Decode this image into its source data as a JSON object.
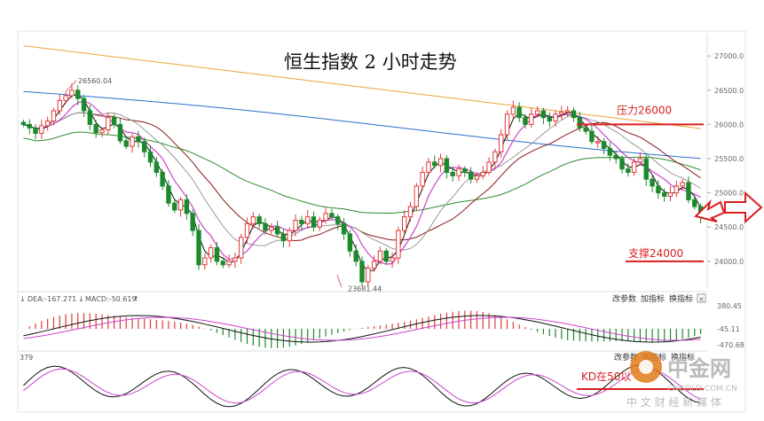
{
  "chart_data": {
    "type": "candlestick",
    "title": "恒生指数 2 小时走势",
    "ylim": [
      23700,
      27300
    ],
    "y_ticks": [
      "27000.0",
      "26500.0",
      "26000.0",
      "25500.0",
      "25000.0",
      "24500.0",
      "24000.0"
    ],
    "y_tick_values": [
      27000,
      26500,
      26000,
      25500,
      25000,
      24500,
      24000
    ],
    "annotations": {
      "high_label": "26560.04",
      "low_label": "23681.44",
      "resistance_label": "压力26000",
      "resistance_value": 26000,
      "support_label": "支撑24000",
      "support_value": 24000,
      "kd_note": "KD在50以"
    },
    "candles_close": [
      26000,
      25950,
      25870,
      25980,
      26050,
      26200,
      26350,
      26420,
      26500,
      26380,
      26200,
      26000,
      25880,
      25920,
      26100,
      26000,
      25760,
      25680,
      25820,
      25750,
      25600,
      25450,
      25300,
      25100,
      24850,
      24750,
      24900,
      24700,
      24450,
      23950,
      24050,
      24200,
      24000,
      23950,
      24000,
      24050,
      24350,
      24550,
      24650,
      24550,
      24450,
      24500,
      24400,
      24300,
      24450,
      24600,
      24550,
      24650,
      24500,
      24600,
      24700,
      24650,
      24550,
      24400,
      24150,
      24000,
      23700,
      23900,
      24000,
      24150,
      24000,
      24050,
      24450,
      24650,
      24800,
      25100,
      25300,
      25450,
      25400,
      25500,
      25300,
      25250,
      25350,
      25300,
      25200,
      25250,
      25300,
      25450,
      25600,
      25850,
      26150,
      26250,
      26100,
      26000,
      26150,
      26200,
      26100,
      26050,
      26150,
      26180,
      26200,
      26100,
      25950,
      25900,
      25750,
      25750,
      25650,
      25550,
      25500,
      25350,
      25300,
      25450,
      25500,
      25200,
      25100,
      25000,
      24950,
      25000,
      25100,
      25150,
      24900,
      24800,
      24650
    ]
  },
  "macd_panel": {
    "dea_label": "DEA:-167.271",
    "macd_label": "MACD:-50.619",
    "ticks": [
      "380.45",
      "-45.11",
      "-470.68"
    ],
    "tool_buttons": [
      "改参数",
      "加指标",
      "换指标"
    ],
    "close_glyph": "×"
  },
  "kd_panel": {
    "left_label": "379",
    "tool_buttons": [
      "改参数",
      "加指标",
      "换指标"
    ]
  },
  "watermark": {
    "logo_text": "中金网",
    "url_text": "CNGOLD.COM.CN",
    "tagline": "中 文 财 经 新 媒 体"
  },
  "colors": {
    "up": "#e23a3a",
    "down": "#1a8a2a",
    "ma5": "#111111",
    "ma10": "#cc44cc",
    "ma20": "#999999",
    "ma30": "#8b1a1a",
    "ma60": "#2e8b2e",
    "ma120": "#2a6fcc",
    "ma250": "#e8a53a"
  }
}
